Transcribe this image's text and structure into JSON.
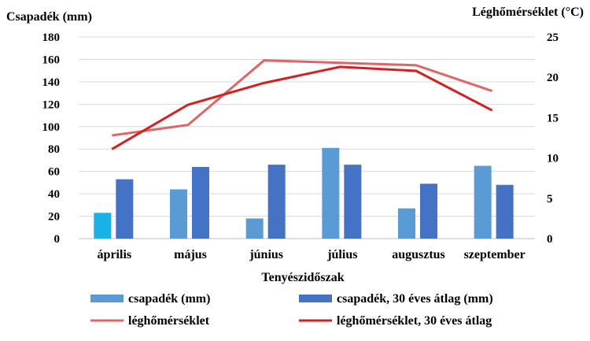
{
  "chart_data": {
    "type": "bar+line",
    "ylabel_left": "Csapadék (mm)",
    "ylabel_right": "Léghőmérséklet (°C)",
    "xlabel": "Tenyészidőszak",
    "categories": [
      "április",
      "május",
      "június",
      "július",
      "augusztus",
      "szeptember"
    ],
    "ylim_left": [
      0,
      180
    ],
    "ylim_right": [
      0,
      25
    ],
    "yticks_left": [
      0,
      20,
      40,
      60,
      80,
      100,
      120,
      140,
      160,
      180
    ],
    "yticks_right": [
      0,
      5,
      10,
      15,
      20,
      25
    ],
    "grid": true,
    "legend_position": "bottom",
    "series": [
      {
        "name": "csapadék (mm)",
        "type": "bar",
        "axis": "left",
        "color": "#5b9bd5",
        "values": [
          23,
          44,
          18,
          81,
          27,
          65
        ]
      },
      {
        "name": "csapadék, 30 éves átlag (mm)",
        "type": "bar",
        "axis": "left",
        "color": "#4472c4",
        "values": [
          53,
          64,
          66,
          66,
          49,
          48
        ]
      },
      {
        "name": "léghőmérséklet",
        "type": "line",
        "axis": "right",
        "color": "#e06666",
        "values": [
          12.8,
          14.1,
          22.1,
          21.8,
          21.5,
          18.3
        ]
      },
      {
        "name": "léghőmérséklet, 30 éves átlag",
        "type": "line",
        "axis": "right",
        "color": "#d42020",
        "values": [
          11.1,
          16.6,
          19.3,
          21.3,
          20.8,
          15.9
        ]
      }
    ],
    "highlight_bar_color": "#1ab0e8"
  }
}
